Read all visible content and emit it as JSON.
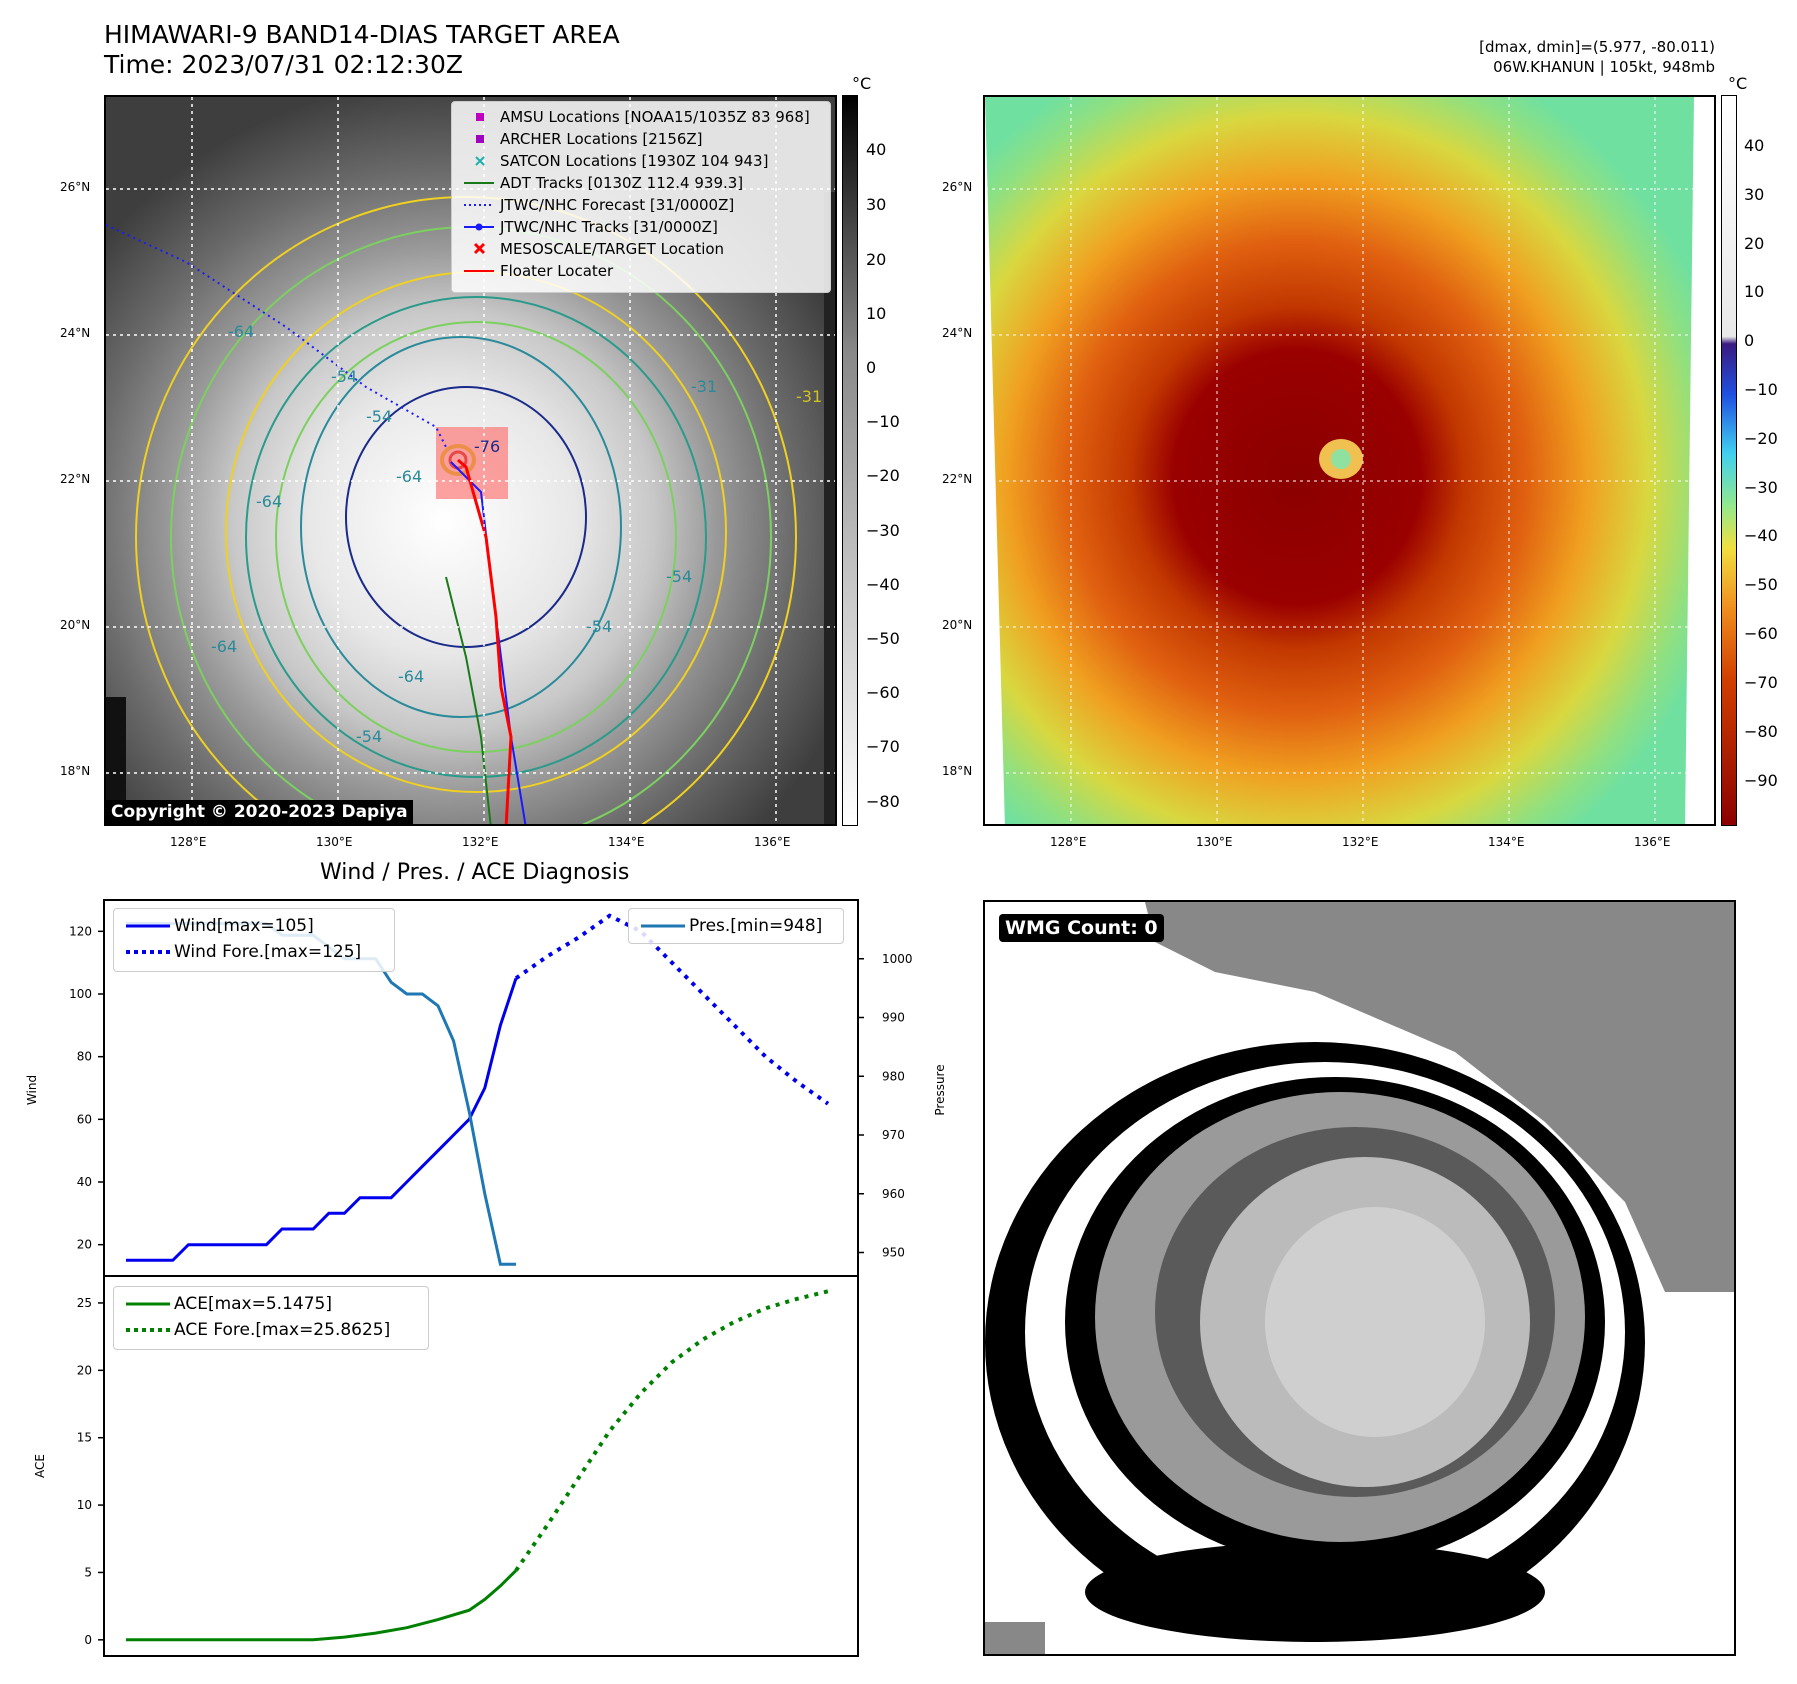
{
  "header": {
    "title_line1": "HIMAWARI-9 BAND14-DIAS TARGET AREA",
    "title_line2": "Time: 2023/07/31 02:12:30Z",
    "stats_line1": "[dmax, dmin]=(5.977, -80.011)",
    "stats_line2": "06W.KHANUN | 105kt, 948mb"
  },
  "map_axes": {
    "lat_labels": [
      "26°N",
      "24°N",
      "22°N",
      "20°N",
      "18°N"
    ],
    "lon_labels": [
      "128°E",
      "130°E",
      "132°E",
      "134°E",
      "136°E"
    ]
  },
  "colorbar_left": {
    "unit": "°C",
    "ticks": [
      "40",
      "30",
      "20",
      "10",
      "0",
      "−10",
      "−20",
      "−30",
      "−40",
      "−50",
      "−60",
      "−70",
      "−80"
    ]
  },
  "colorbar_right": {
    "unit": "°C",
    "ticks": [
      "40",
      "30",
      "20",
      "10",
      "0",
      "−10",
      "−20",
      "−30",
      "−40",
      "−50",
      "−60",
      "−70",
      "−80",
      "−90"
    ]
  },
  "legend": {
    "items": [
      {
        "label": "AMSU Locations [NOAA15/1035Z 83 968]",
        "symbol": "square",
        "color": "#c000c0"
      },
      {
        "label": "ARCHER Locations [2156Z]",
        "symbol": "square",
        "color": "#a000c0"
      },
      {
        "label": "SATCON Locations [1930Z 104 943]",
        "symbol": "x",
        "color": "#20b0b0"
      },
      {
        "label": "ADT Tracks [0130Z 112.4 939.3]",
        "symbol": "line",
        "color": "#1a7a1a"
      },
      {
        "label": "JTWC/NHC Forecast [31/0000Z]",
        "symbol": "dotted",
        "color": "#1a1aff"
      },
      {
        "label": "JTWC/NHC Tracks [31/0000Z]",
        "symbol": "line-dot",
        "color": "#1a1aff"
      },
      {
        "label": "MESOSCALE/TARGET Location",
        "symbol": "x",
        "color": "#ff0000"
      },
      {
        "label": "Floater Locater",
        "symbol": "line",
        "color": "#ff0000"
      }
    ]
  },
  "contour_labels": [
    "-64",
    "-54",
    "-54",
    "-64",
    "-64",
    "-76",
    "-64",
    "-54",
    "-31",
    "-31",
    "-54",
    "-54",
    "-64"
  ],
  "copyright": "Copyright © 2020-2023 Dapiya",
  "wmg_label": "WMG Count: 0",
  "diagnosis_title": "Wind / Pres. / ACE Diagnosis",
  "chart_data": [
    {
      "type": "line",
      "title": "Wind / Pres. / ACE Diagnosis",
      "ylabel": "Wind",
      "ylabel_right": "Pressure",
      "ylim": [
        10,
        130
      ],
      "ylim_right": [
        946,
        1010
      ],
      "yticks": [
        20,
        40,
        60,
        80,
        100,
        120
      ],
      "yticks_right": [
        950,
        960,
        970,
        980,
        990,
        1000
      ],
      "series": [
        {
          "name": "Wind[max=105]",
          "color": "#0000ee",
          "style": "solid",
          "axis": "left",
          "x": [
            0,
            1,
            2,
            3,
            4,
            5,
            6,
            7,
            8,
            9,
            10,
            11,
            12,
            13,
            14,
            15,
            16,
            17,
            18,
            19,
            20,
            21,
            22,
            23,
            24,
            25
          ],
          "y": [
            15,
            15,
            15,
            15,
            20,
            20,
            20,
            20,
            20,
            20,
            25,
            25,
            25,
            30,
            30,
            35,
            35,
            35,
            40,
            45,
            50,
            55,
            60,
            70,
            90,
            105
          ]
        },
        {
          "name": "Wind Fore.[max=125]",
          "color": "#0000ee",
          "style": "dotted",
          "axis": "left",
          "x": [
            25,
            27,
            29,
            31,
            33,
            35,
            37,
            39,
            41,
            43,
            45
          ],
          "y": [
            105,
            112,
            118,
            125,
            120,
            110,
            100,
            90,
            80,
            72,
            65
          ]
        },
        {
          "name": "Pres.[min=948]",
          "color": "#1f77b4",
          "style": "solid",
          "axis": "right",
          "x": [
            0,
            1,
            2,
            3,
            4,
            5,
            6,
            7,
            8,
            9,
            10,
            11,
            12,
            13,
            14,
            15,
            16,
            17,
            18,
            19,
            20,
            21,
            22,
            23,
            24,
            25
          ],
          "y": [
            1006,
            1006,
            1006,
            1006,
            1006,
            1006,
            1006,
            1006,
            1006,
            1006,
            1004,
            1004,
            1004,
            1002,
            1000,
            1000,
            1000,
            996,
            994,
            994,
            992,
            986,
            974,
            960,
            948,
            948
          ]
        }
      ]
    },
    {
      "type": "line",
      "ylabel": "ACE",
      "ylim": [
        -1.2,
        27
      ],
      "yticks": [
        0,
        5,
        10,
        15,
        20,
        25
      ],
      "series": [
        {
          "name": "ACE[max=5.1475]",
          "color": "#008000",
          "style": "solid",
          "x": [
            0,
            4,
            8,
            12,
            14,
            16,
            18,
            20,
            22,
            23,
            24,
            25
          ],
          "y": [
            0,
            0,
            0,
            0,
            0.2,
            0.5,
            0.9,
            1.5,
            2.2,
            3.0,
            4.0,
            5.1475
          ]
        },
        {
          "name": "ACE Fore.[max=25.8625]",
          "color": "#008000",
          "style": "dotted",
          "x": [
            25,
            27,
            29,
            31,
            33,
            35,
            37,
            39,
            41,
            43,
            45
          ],
          "y": [
            5.1475,
            8.5,
            12,
            15.5,
            18.3,
            20.6,
            22.3,
            23.6,
            24.6,
            25.3,
            25.8625
          ]
        }
      ]
    }
  ]
}
